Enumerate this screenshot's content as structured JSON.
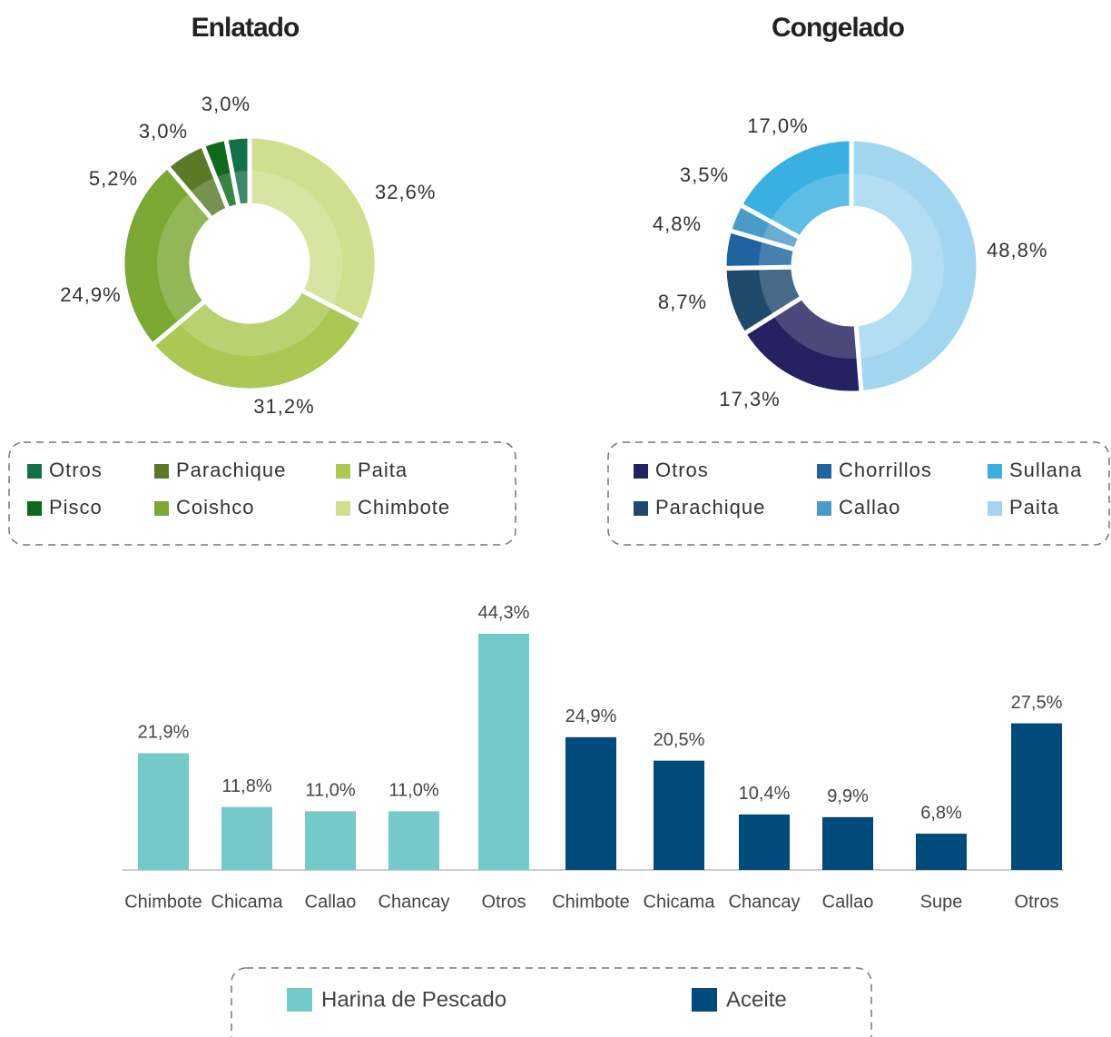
{
  "chart_data": [
    {
      "type": "donut",
      "title": "Enlatado",
      "categories": [
        "Chimbote",
        "Paita",
        "Coishco",
        "Parachique",
        "Pisco",
        "Otros"
      ],
      "values": [
        32.6,
        31.2,
        24.9,
        5.2,
        3.0,
        3.0
      ],
      "value_labels": [
        "32,6%",
        "31,2%",
        "24,9%",
        "5,2%",
        "3,0%",
        "3,0%"
      ],
      "colors": [
        "#d0df8e",
        "#aac852",
        "#7aa832",
        "#5a7a28",
        "#0d6a1a",
        "#137048"
      ],
      "legend_order": [
        "Otros",
        "Pisco",
        "Parachique",
        "Coishco",
        "Paita",
        "Chimbote"
      ]
    },
    {
      "type": "donut",
      "title": "Congelado",
      "categories": [
        "Paita",
        "Otros",
        "Parachique",
        "Chorrillos",
        "Callao",
        "Sullana"
      ],
      "values": [
        48.8,
        17.3,
        8.7,
        4.8,
        3.5,
        17.0
      ],
      "value_labels": [
        "48,8%",
        "17,3%",
        "8,7%",
        "4,8%",
        "3,5%",
        "17,0%"
      ],
      "colors": [
        "#a2d6f0",
        "#242260",
        "#1f4a6e",
        "#1f63a0",
        "#4a9cc8",
        "#3ab0e0"
      ],
      "legend_order": [
        "Otros",
        "Parachique",
        "Chorrillos",
        "Callao",
        "Sullana",
        "Paita"
      ]
    },
    {
      "type": "bar",
      "categories": [
        "Chimbote",
        "Chicama",
        "Callao",
        "Chancay",
        "Otros",
        "Chimbote",
        "Chicama",
        "Chancay",
        "Callao",
        "Supe",
        "Otros"
      ],
      "series": [
        {
          "name": "Harina de Pescado",
          "color": "#74c9c9",
          "values": [
            21.9,
            11.8,
            11.0,
            11.0,
            44.3,
            null,
            null,
            null,
            null,
            null,
            null
          ],
          "value_labels": [
            "21,9%",
            "11,8%",
            "11,0%",
            "11,0%",
            "44,3%",
            null,
            null,
            null,
            null,
            null,
            null
          ]
        },
        {
          "name": "Aceite",
          "color": "#004a7c",
          "values": [
            null,
            null,
            null,
            null,
            null,
            24.9,
            20.5,
            10.4,
            9.9,
            6.8,
            27.5
          ],
          "value_labels": [
            null,
            null,
            null,
            null,
            null,
            "24,9%",
            "20,5%",
            "10,4%",
            "9,9%",
            "6,8%",
            "27,5%"
          ]
        }
      ]
    }
  ]
}
